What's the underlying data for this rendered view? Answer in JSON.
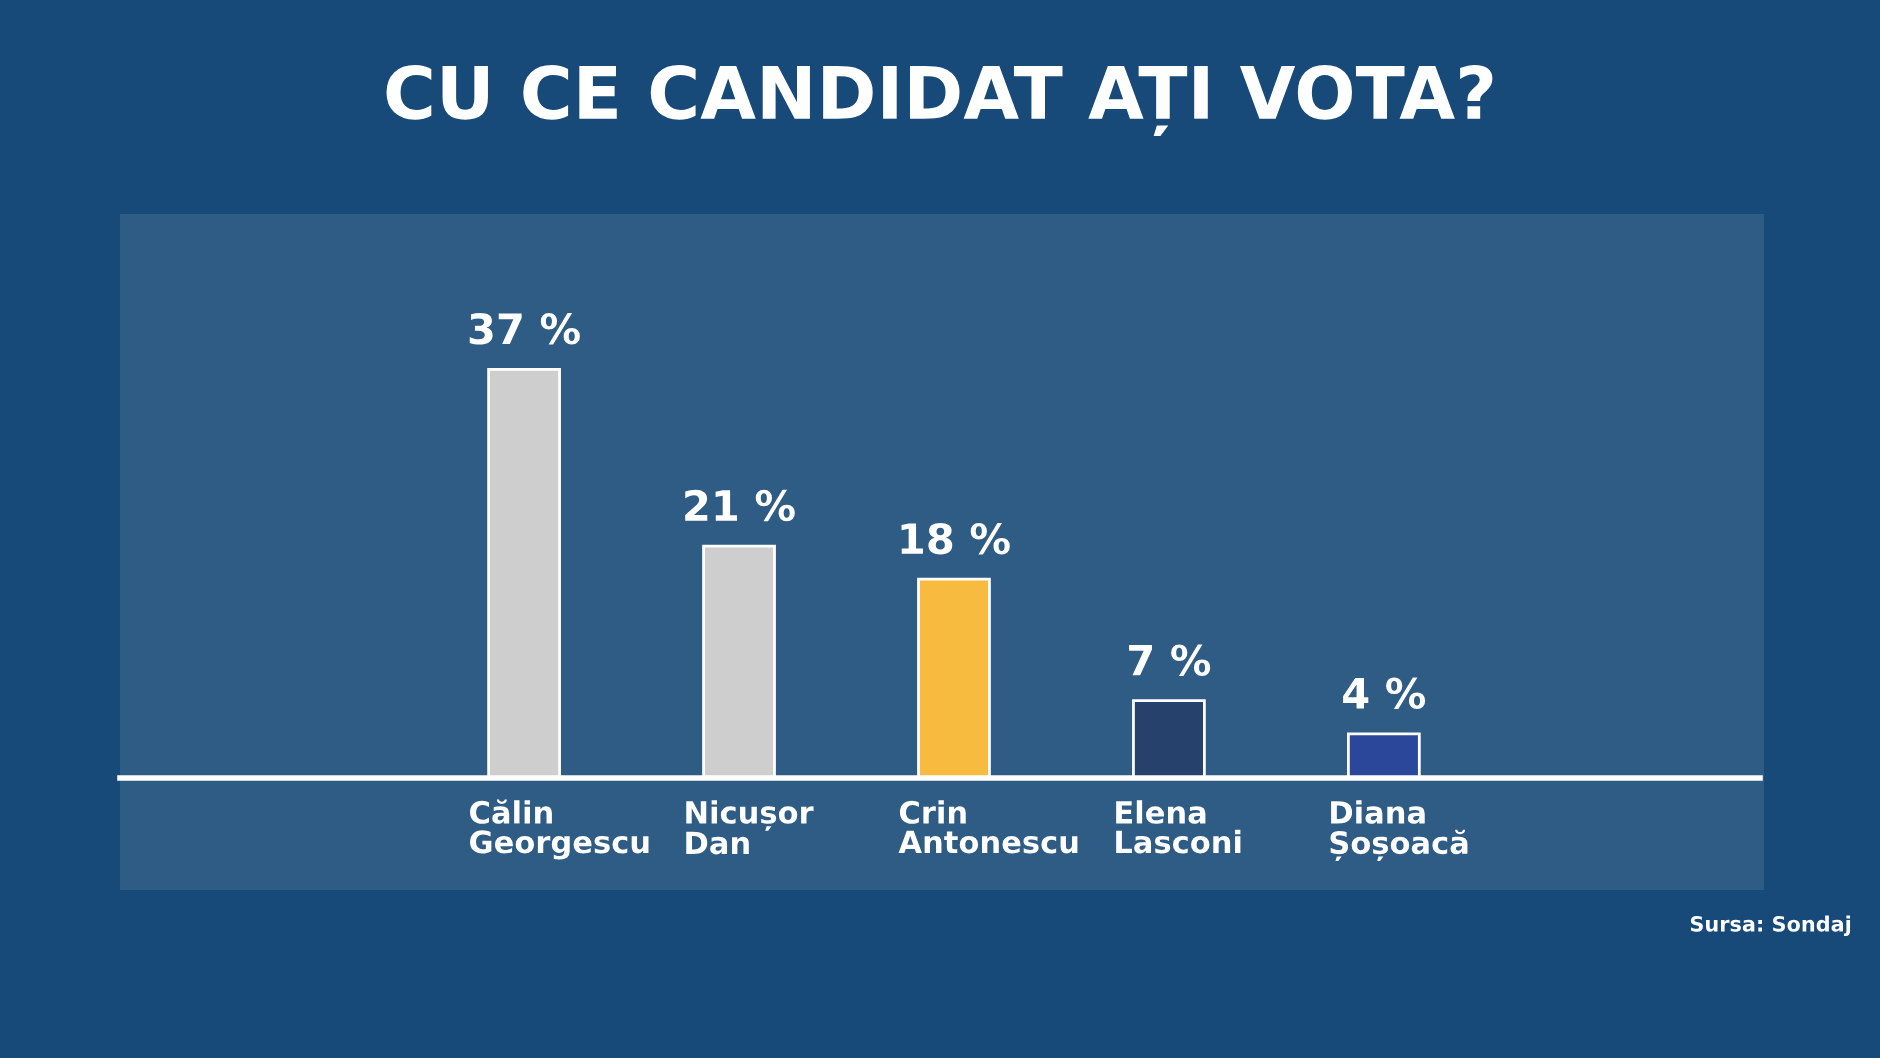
{
  "chart_data": {
    "type": "bar",
    "title": "CU CE CANDIDAT AȚI VOTA?",
    "categories": [
      "Călin\nGeorgescu",
      "Nicușor\nDan",
      "Crin\nAntonescu",
      "Elena\nLasconi",
      "Diana\nȘoșoacă"
    ],
    "values": [
      37,
      21,
      18,
      7,
      4
    ],
    "colors": [
      "#c9c9c9",
      "#c9c9c9",
      "#f6b42a",
      "#0e2d5c",
      "#14338f"
    ],
    "value_labels": [
      "37 %",
      "21 %",
      "18 %",
      "7 %",
      "4 %"
    ],
    "annotations": [
      "Sursa: Sondaj"
    ],
    "grid": false,
    "legend": false
  }
}
